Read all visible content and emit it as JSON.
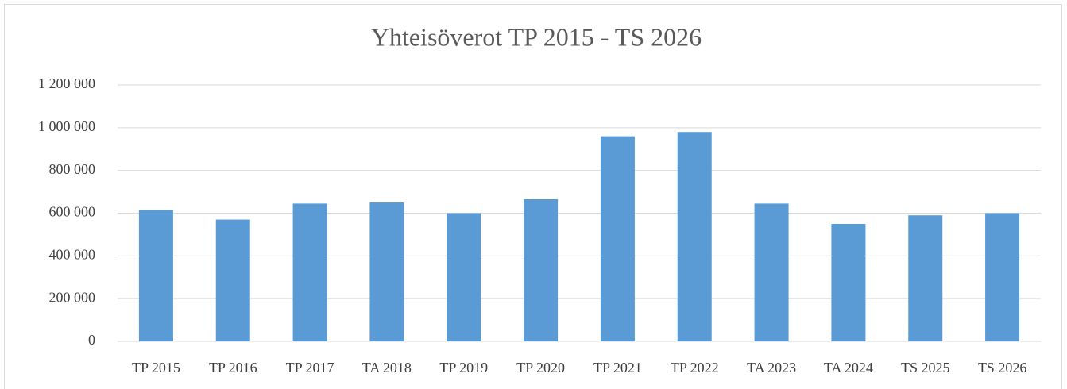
{
  "chart_data": {
    "type": "bar",
    "title": "Yhteisöverot TP 2015 - TS 2026",
    "categories": [
      "TP 2015",
      "TP 2016",
      "TP 2017",
      "TA 2018",
      "TP 2019",
      "TP 2020",
      "TP 2021",
      "TP 2022",
      "TA 2023",
      "TA 2024",
      "TS 2025",
      "TS 2026"
    ],
    "values": [
      615000,
      570000,
      645000,
      650000,
      600000,
      665000,
      960000,
      980000,
      645000,
      550000,
      590000,
      600000
    ],
    "color": "#5b9bd5",
    "ylim": [
      0,
      1200000
    ],
    "yticks": [
      0,
      {
        "value": 200000,
        "label": "200 000"
      },
      {
        "value": 400000,
        "label": "400 000"
      },
      {
        "value": 600000,
        "label": "600 000"
      },
      {
        "value": 800000,
        "label": "800 000"
      },
      {
        "value": 1000000,
        "label": "1 000 000"
      },
      {
        "value": 1200000,
        "label": "1 200 000"
      }
    ],
    "grid": true
  }
}
